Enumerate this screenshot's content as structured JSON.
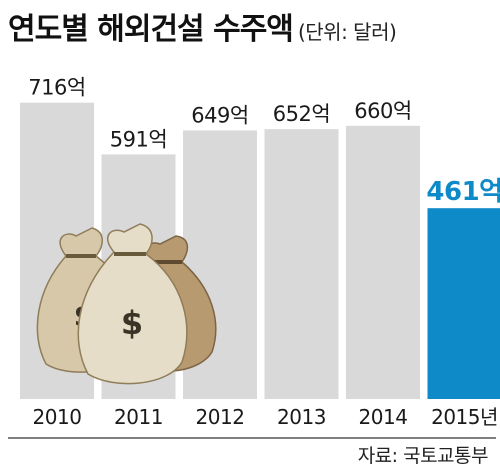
{
  "title": "연도별 해외건설 수주액",
  "unit_note": "(단위: 달러)",
  "source": "자료: 국토교통부",
  "colors": {
    "bar": "#d9d9d9",
    "highlight": "#0f8ac9",
    "text": "#1a1a1a",
    "baseline": "#333333"
  },
  "illustration": "money-bags-dollar-icon",
  "chart_data": {
    "type": "bar",
    "title": "연도별 해외건설 수주액",
    "unit": "달러",
    "categories": [
      "2010",
      "2011",
      "2012",
      "2013",
      "2014",
      "2015년"
    ],
    "values": [
      716,
      591,
      649,
      652,
      660,
      461
    ],
    "value_labels": [
      "716억",
      "591억",
      "649억",
      "652억",
      "660억",
      "461억"
    ],
    "highlight_index": 5,
    "ylim": [
      0,
      760
    ],
    "grid": false,
    "legend": "none"
  }
}
